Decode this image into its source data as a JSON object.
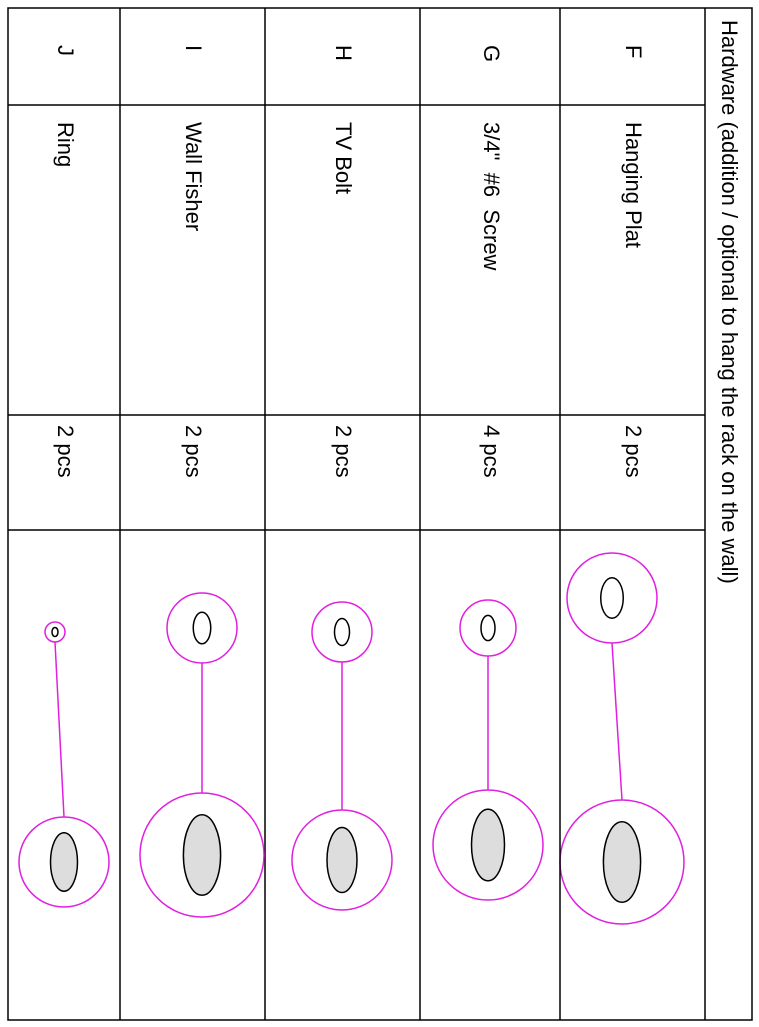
{
  "header": {
    "title": "Hardware (addition / optional to hang the rack on the wall)"
  },
  "table": {
    "rows": [
      {
        "letter": "F",
        "name": "Hanging Plat",
        "qty": "2 pcs"
      },
      {
        "letter": "G",
        "name": "3/4\"  #6  Screw",
        "qty": "4 pcs"
      },
      {
        "letter": "H",
        "name": "TV Bolt",
        "qty": "2 pcs"
      },
      {
        "letter": "I",
        "name": "Wall Fisher",
        "qty": "2 pcs"
      },
      {
        "letter": "J",
        "name": "Ring",
        "qty": "2 pcs"
      }
    ]
  }
}
